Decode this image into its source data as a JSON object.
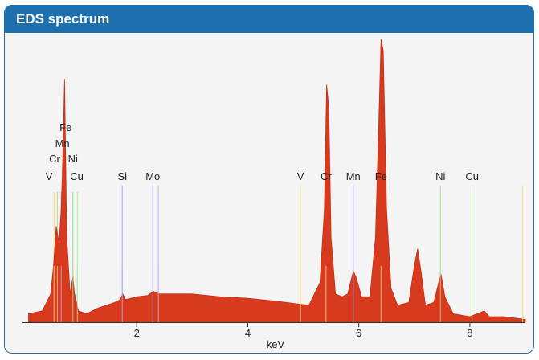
{
  "header": {
    "title": "EDS spectrum"
  },
  "chart_data": {
    "type": "area",
    "title": "EDS spectrum",
    "xlabel": "keV",
    "ylabel": "",
    "xlim": [
      0.0,
      9.0
    ],
    "ylim": [
      0,
      100
    ],
    "xticks": [
      2,
      4,
      6,
      8
    ],
    "grid": false,
    "spectrum_color": "#d83a1e",
    "spectrum_points": [
      [
        0.05,
        3
      ],
      [
        0.3,
        4
      ],
      [
        0.45,
        10
      ],
      [
        0.5,
        20
      ],
      [
        0.55,
        34
      ],
      [
        0.6,
        28
      ],
      [
        0.64,
        40
      ],
      [
        0.66,
        52
      ],
      [
        0.7,
        86
      ],
      [
        0.74,
        30
      ],
      [
        0.8,
        10
      ],
      [
        0.85,
        16
      ],
      [
        0.88,
        10
      ],
      [
        0.95,
        4
      ],
      [
        1.1,
        3
      ],
      [
        1.3,
        5
      ],
      [
        1.6,
        7
      ],
      [
        1.7,
        8
      ],
      [
        1.75,
        10
      ],
      [
        1.8,
        8
      ],
      [
        2.0,
        9
      ],
      [
        2.2,
        9.5
      ],
      [
        2.3,
        11
      ],
      [
        2.4,
        10
      ],
      [
        2.7,
        10
      ],
      [
        3.0,
        10
      ],
      [
        3.5,
        9
      ],
      [
        4.0,
        8.5
      ],
      [
        4.5,
        7.5
      ],
      [
        4.9,
        6.5
      ],
      [
        5.1,
        6
      ],
      [
        5.3,
        14
      ],
      [
        5.38,
        40
      ],
      [
        5.42,
        84
      ],
      [
        5.46,
        76
      ],
      [
        5.5,
        30
      ],
      [
        5.58,
        10
      ],
      [
        5.7,
        9
      ],
      [
        5.8,
        10
      ],
      [
        5.9,
        18
      ],
      [
        5.95,
        16
      ],
      [
        6.05,
        9
      ],
      [
        6.2,
        9
      ],
      [
        6.3,
        30
      ],
      [
        6.36,
        70
      ],
      [
        6.4,
        100
      ],
      [
        6.44,
        96
      ],
      [
        6.5,
        40
      ],
      [
        6.58,
        12
      ],
      [
        6.7,
        6
      ],
      [
        6.9,
        7
      ],
      [
        7.0,
        20
      ],
      [
        7.06,
        26
      ],
      [
        7.12,
        18
      ],
      [
        7.2,
        6
      ],
      [
        7.35,
        7
      ],
      [
        7.45,
        15
      ],
      [
        7.48,
        17
      ],
      [
        7.55,
        9
      ],
      [
        7.7,
        3
      ],
      [
        8.0,
        2
      ],
      [
        8.26,
        4
      ],
      [
        8.35,
        2
      ],
      [
        8.6,
        2
      ],
      [
        9.0,
        1
      ]
    ],
    "left_stack_labels": [
      {
        "text": "Fe",
        "row": 0
      },
      {
        "text": "Mn",
        "row": 1
      },
      {
        "text": "Cr",
        "row": 2
      },
      {
        "text": "Ni",
        "row": 2
      },
      {
        "text": "V",
        "row": 3
      },
      {
        "text": "Cu",
        "row": 3
      }
    ],
    "element_markers": [
      {
        "element": "V",
        "kev": 0.51,
        "color": "#f0e68c",
        "label": "V"
      },
      {
        "element": "Cr",
        "kev": 0.57,
        "color": "#d8d880",
        "label": "Cr"
      },
      {
        "element": "Mn",
        "kev": 0.64,
        "color": "#b0b0f0",
        "label": "Mn"
      },
      {
        "element": "Fe",
        "kev": 0.7,
        "color": "#d83a1e",
        "label": "Fe"
      },
      {
        "element": "Ni",
        "kev": 0.85,
        "color": "#a8e0a0",
        "label": "Ni"
      },
      {
        "element": "Cu",
        "kev": 0.93,
        "color": "#b8e8a8",
        "label": "Cu"
      },
      {
        "element": "Si",
        "kev": 1.74,
        "color": "#b8b0f0",
        "label": "Si"
      },
      {
        "element": "Mo",
        "kev": 2.29,
        "color": "#b8b0f0",
        "label": "Mo"
      },
      {
        "element": "Mo2",
        "kev": 2.39,
        "color": "#c8c0f0",
        "label": ""
      },
      {
        "element": "V",
        "kev": 4.95,
        "color": "#f2ea90",
        "label": "V"
      },
      {
        "element": "Cr",
        "kev": 5.41,
        "color": "#e8e090",
        "label": "Cr"
      },
      {
        "element": "Mn",
        "kev": 5.9,
        "color": "#c0b0f0",
        "label": "Mn"
      },
      {
        "element": "Fe",
        "kev": 6.4,
        "color": "#e8e090",
        "label": "Fe"
      },
      {
        "element": "Ni",
        "kev": 7.47,
        "color": "#b0e4a0",
        "label": "Ni"
      },
      {
        "element": "Cu",
        "kev": 8.04,
        "color": "#c8ecb0",
        "label": "Cu"
      },
      {
        "element": "end",
        "kev": 8.95,
        "color": "#f0e890",
        "label": ""
      }
    ]
  }
}
